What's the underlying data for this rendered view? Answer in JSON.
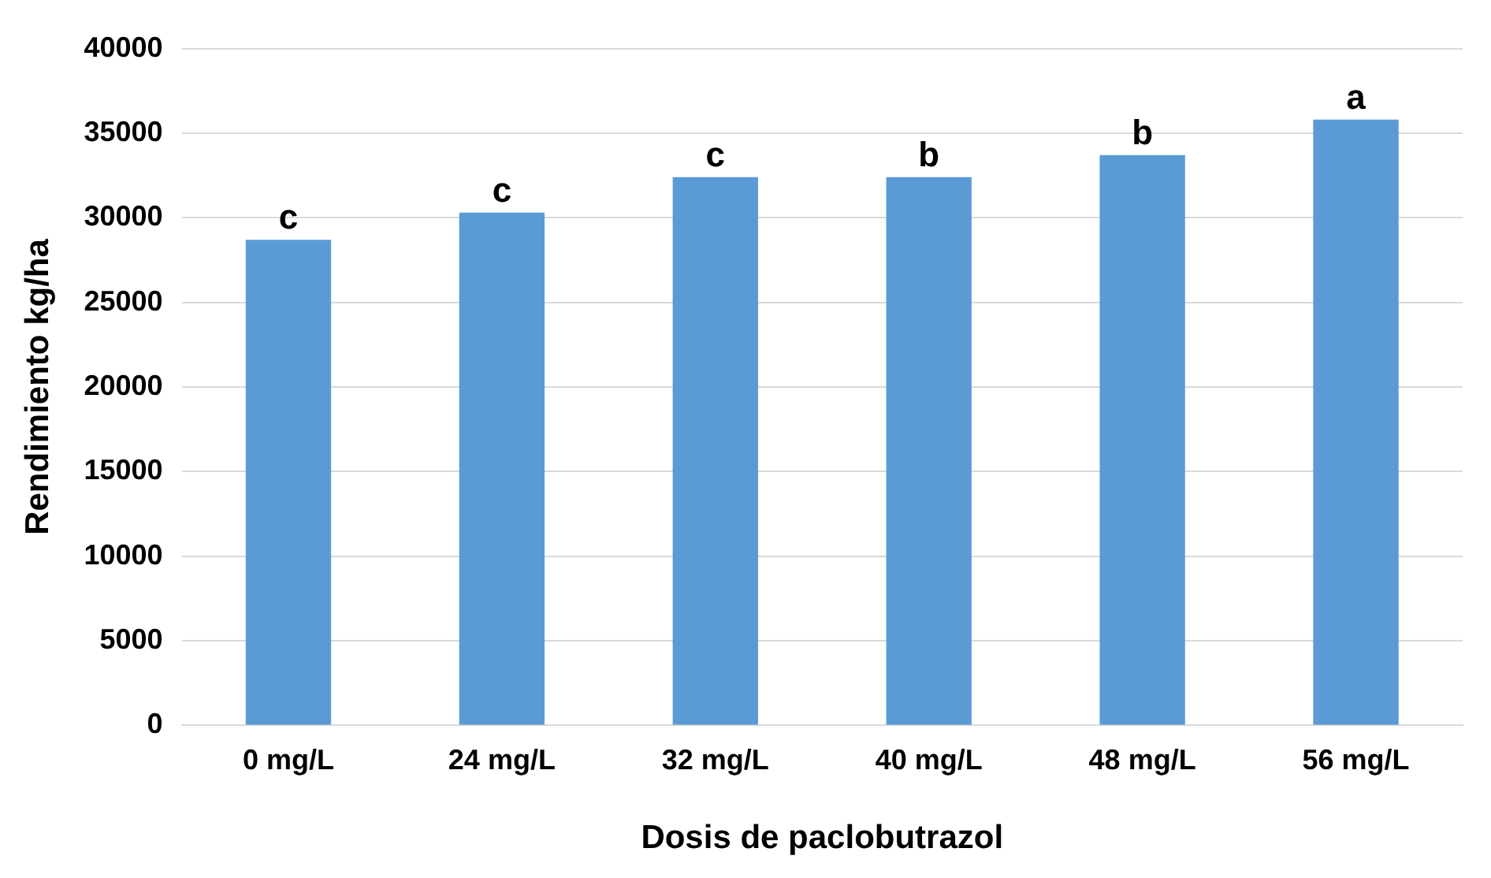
{
  "chart_data": {
    "type": "bar",
    "xlabel": "Dosis de paclobutrazol",
    "ylabel": "Rendimiento kg/ha",
    "categories": [
      "0 mg/L",
      "24 mg/L",
      "32 mg/L",
      "40 mg/L",
      "48 mg/L",
      "56 mg/L"
    ],
    "values": [
      28700,
      30300,
      32400,
      32400,
      33700,
      35800
    ],
    "color": "#5b9bd5",
    "ylim": [
      0,
      40000
    ],
    "yticks": [
      0,
      5000,
      10000,
      15000,
      20000,
      25000,
      30000,
      35000,
      40000
    ],
    "grid": "y",
    "legend": false,
    "annotations": [
      {
        "text": "c",
        "x": "0 mg/L",
        "y": 28700
      },
      {
        "text": "c",
        "x": "24 mg/L",
        "y": 30300
      },
      {
        "text": "c",
        "x": "32 mg/L",
        "y": 32400
      },
      {
        "text": "b",
        "x": "40 mg/L",
        "y": 32400
      },
      {
        "text": "b",
        "x": "48 mg/L",
        "y": 33700
      },
      {
        "text": "a",
        "x": "56 mg/L",
        "y": 35800
      }
    ]
  }
}
